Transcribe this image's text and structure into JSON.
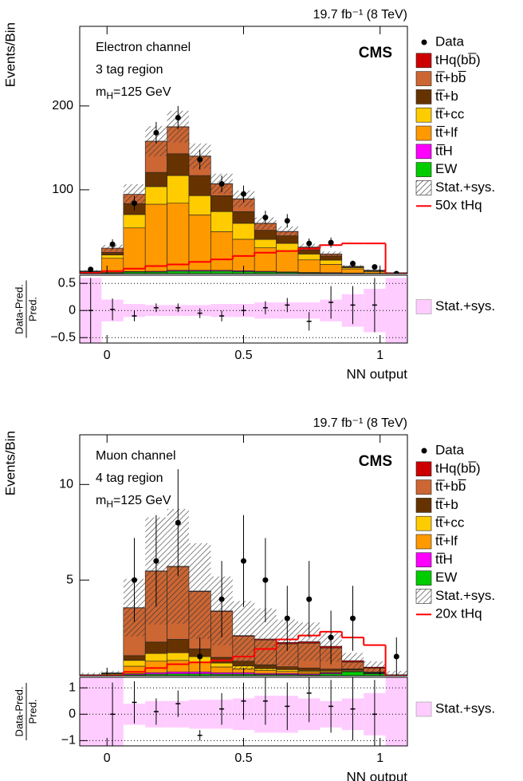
{
  "chart_data": [
    {
      "type": "stacked_histogram",
      "lumi_label": "19.7 fb⁻¹ (8 TeV)",
      "experiment": "CMS",
      "channel": "Electron channel",
      "region": "3 tag region",
      "mass_label": [
        "m",
        "H",
        "=125 GeV"
      ],
      "ylabel": "Events/Bin",
      "xlabel": "NN output",
      "bins": [
        -0.1,
        -0.02,
        0.06,
        0.14,
        0.22,
        0.3,
        0.38,
        0.46,
        0.54,
        0.62,
        0.7,
        0.78,
        0.86,
        0.94,
        1.02,
        1.1
      ],
      "xlim": [
        -0.1,
        1.1
      ],
      "xticks": [
        0,
        0.5,
        1
      ],
      "ylim": [
        0,
        295
      ],
      "yticks": [
        100,
        200
      ],
      "series": [
        {
          "name": "tHq(bb̅)",
          "color": "#cc0000",
          "values": [
            0,
            0.05,
            0.1,
            0.2,
            0.3,
            0.3,
            0.3,
            0.3,
            0.3,
            0.3,
            0.3,
            0.3,
            0.2,
            0.1,
            0
          ]
        },
        {
          "name": "tt̅+bb̅",
          "color": "#cc6633",
          "values": [
            0.3,
            5,
            11,
            37,
            32,
            23,
            14,
            15,
            8,
            5,
            3,
            2,
            0.5,
            0.3,
            0.1
          ]
        },
        {
          "name": "tt̅+b",
          "color": "#663300",
          "values": [
            0.3,
            3,
            13,
            17,
            26,
            24,
            19,
            14,
            11,
            9,
            5,
            5,
            0.8,
            0.5,
            0.1
          ]
        },
        {
          "name": "tt̅+cc",
          "color": "#ffcc00",
          "values": [
            0.5,
            4,
            16,
            21,
            33,
            23,
            24,
            19,
            10,
            9,
            7,
            5,
            1.5,
            0.8,
            0.2
          ]
        },
        {
          "name": "tt̅+lf",
          "color": "#ff9900",
          "values": [
            1.5,
            17,
            52,
            80,
            80,
            66,
            46,
            37.5,
            28,
            25,
            15,
            10,
            5,
            2,
            0.5
          ]
        },
        {
          "name": "tt̅H",
          "color": "#ff00ff",
          "values": [
            0.1,
            0.3,
            0.5,
            0.8,
            1,
            1,
            1,
            1,
            0.8,
            0.6,
            0.4,
            0.3,
            0.2,
            0.1,
            0.05
          ]
        },
        {
          "name": "EW",
          "color": "#00cc00",
          "values": [
            0.5,
            1,
            2,
            2,
            3,
            3,
            3,
            2.5,
            2,
            1.5,
            1,
            0.8,
            0.5,
            0.3,
            0.1
          ]
        }
      ],
      "data": {
        "name": "Data",
        "color": "#000000",
        "values": [
          5,
          35,
          84,
          168,
          186,
          136,
          107,
          95,
          67,
          63,
          36,
          37,
          12,
          8,
          0
        ],
        "errors": [
          2,
          6,
          9,
          13,
          14,
          12,
          10,
          10,
          8,
          8,
          6,
          6,
          3.5,
          3,
          1
        ]
      },
      "uncertainty": {
        "name": "Stat.+sys.",
        "values": [
          1,
          4,
          12,
          18,
          19,
          15,
          12,
          10,
          7,
          6,
          4,
          3,
          1.5,
          1,
          0.5
        ]
      },
      "signal": {
        "name": "50x tHq",
        "color": "#ff0000",
        "values": [
          1,
          3,
          6,
          9,
          11,
          14,
          17,
          21,
          25,
          27,
          30,
          34,
          36,
          36,
          0
        ]
      },
      "ratio": {
        "ylabel": [
          "Data-Pred.",
          "Pred."
        ],
        "ylim": [
          -0.6,
          0.65
        ],
        "yticks": [
          {
            "value": -0.5,
            "label": "−0.5"
          },
          0,
          0.5
        ],
        "values": [
          0,
          0.02,
          -0.1,
          0.05,
          0.05,
          -0.05,
          -0.1,
          0,
          0.05,
          0.1,
          -0.2,
          0.15,
          0.1,
          0.1,
          null
        ],
        "errors": [
          0.6,
          0.2,
          0.1,
          0.08,
          0.08,
          0.09,
          0.1,
          0.1,
          0.12,
          0.13,
          0.17,
          0.3,
          0.35,
          0.5,
          null
        ],
        "band_name": "Stat.+sys.",
        "band_color": "#ffccff",
        "band": [
          0.6,
          0.2,
          0.12,
          0.1,
          0.1,
          0.1,
          0.12,
          0.12,
          0.15,
          0.15,
          0.15,
          0.2,
          0.3,
          0.4,
          0.6
        ]
      }
    },
    {
      "type": "stacked_histogram",
      "lumi_label": "19.7 fb⁻¹ (8 TeV)",
      "experiment": "CMS",
      "channel": "Muon channel",
      "region": "4 tag region",
      "mass_label": [
        "m",
        "H",
        "=125 GeV"
      ],
      "ylabel": "Events/Bin",
      "xlabel": "NN output",
      "bins": [
        -0.1,
        -0.02,
        0.06,
        0.14,
        0.22,
        0.3,
        0.38,
        0.46,
        0.54,
        0.62,
        0.7,
        0.78,
        0.86,
        0.94,
        1.02,
        1.1
      ],
      "xlim": [
        -0.1,
        1.1
      ],
      "xticks": [
        0,
        0.5,
        1
      ],
      "ylim": [
        0,
        12.6
      ],
      "yticks": [
        5,
        10
      ],
      "series": [
        {
          "name": "tHq(bb̅)",
          "color": "#cc0000",
          "values": [
            0,
            0,
            0.01,
            0.02,
            0.02,
            0.03,
            0.03,
            0.04,
            0.05,
            0.07,
            0.08,
            0.09,
            0.08,
            0.06,
            0
          ]
        },
        {
          "name": "tt̅+bb̅",
          "color": "#cc6633",
          "values": [
            0.01,
            0.02,
            2.5,
            3.7,
            3.8,
            3.0,
            2.4,
            1.3,
            1.3,
            1.2,
            1.3,
            1.1,
            0.35,
            0.2,
            0.05
          ]
        },
        {
          "name": "tt̅+b",
          "color": "#663300",
          "values": [
            0.01,
            0.02,
            0.25,
            0.6,
            0.7,
            0.4,
            0.3,
            0.25,
            0.2,
            0.15,
            0.15,
            0.1,
            0.05,
            0.03,
            0
          ]
        },
        {
          "name": "tt̅+cc",
          "color": "#ffcc00",
          "values": [
            0.01,
            0.03,
            0.3,
            0.4,
            0.4,
            0.3,
            0.2,
            0.15,
            0.1,
            0.1,
            0.05,
            0.05,
            0.03,
            0.02,
            0
          ]
        },
        {
          "name": "tt̅+lf",
          "color": "#ff9900",
          "values": [
            0.02,
            0.05,
            0.4,
            0.6,
            0.6,
            0.5,
            0.3,
            0.2,
            0.15,
            0.1,
            0.1,
            0.05,
            0.05,
            0.02,
            0
          ]
        },
        {
          "name": "tt̅H",
          "color": "#ff00ff",
          "values": [
            0,
            0.01,
            0.05,
            0.08,
            0.1,
            0.1,
            0.08,
            0.08,
            0.06,
            0.06,
            0.05,
            0.05,
            0.03,
            0.02,
            0
          ]
        },
        {
          "name": "EW",
          "color": "#00cc00",
          "values": [
            0,
            0.02,
            0.05,
            0.08,
            0.1,
            0.1,
            0.08,
            0.08,
            0.06,
            0.06,
            0.05,
            0.1,
            0.2,
            0.1,
            0
          ]
        }
      ],
      "data": {
        "name": "Data",
        "color": "#000000",
        "values": [
          null,
          null,
          5,
          6,
          8,
          1,
          4,
          6,
          5,
          3,
          4,
          2,
          3,
          null,
          1
        ],
        "errors": [
          null,
          null,
          2.2,
          2.4,
          2.8,
          1,
          2,
          2.4,
          2.2,
          1.7,
          2,
          1.4,
          1.7,
          null,
          1
        ]
      },
      "uncertainty": {
        "name": "Stat.+sys.",
        "values": [
          0.1,
          0.1,
          1.5,
          2.8,
          3.0,
          2.5,
          1.8,
          1.8,
          1.6,
          1.2,
          1.0,
          0.8,
          0.4,
          0.3,
          0.2
        ]
      },
      "signal": {
        "name": "20x tHq",
        "color": "#ff0000",
        "values": [
          0,
          0,
          0.2,
          0.4,
          0.6,
          0.7,
          0.8,
          1.0,
          1.4,
          1.9,
          2.1,
          2.3,
          2.0,
          1.6,
          0
        ]
      },
      "ratio": {
        "ylabel": [
          "Data-Pred.",
          "Pred."
        ],
        "ylim": [
          -1.2,
          1.4
        ],
        "yticks": [
          {
            "value": -1,
            "label": "−1"
          },
          0,
          1
        ],
        "values": [
          null,
          0,
          0.45,
          0.1,
          0.4,
          -0.8,
          0.2,
          0.5,
          0.5,
          0.3,
          0.8,
          0.3,
          0.2,
          0,
          null
        ],
        "errors": [
          null,
          1.2,
          0.8,
          0.5,
          0.5,
          0.2,
          0.6,
          0.7,
          0.9,
          0.9,
          1.1,
          1.0,
          1.2,
          1.3,
          null
        ],
        "band_name": "Stat.+sys.",
        "band_color": "#ffccff",
        "band": [
          1.4,
          1.4,
          0.4,
          0.5,
          0.5,
          0.55,
          0.55,
          0.6,
          0.7,
          0.7,
          0.6,
          0.5,
          0.6,
          0.8,
          1.4
        ]
      }
    }
  ]
}
